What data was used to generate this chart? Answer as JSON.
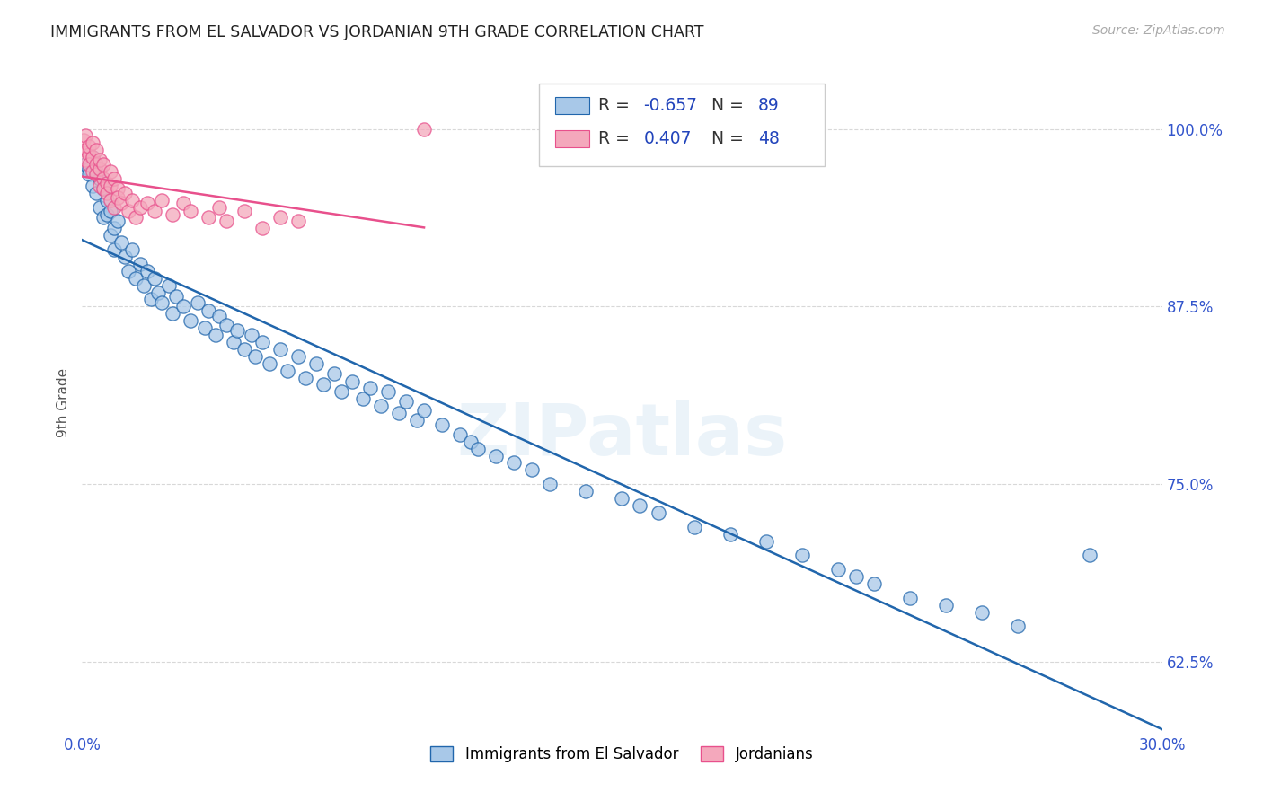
{
  "title": "IMMIGRANTS FROM EL SALVADOR VS JORDANIAN 9TH GRADE CORRELATION CHART",
  "source": "Source: ZipAtlas.com",
  "ylabel": "9th Grade",
  "yticks": [
    0.625,
    0.75,
    0.875,
    1.0
  ],
  "ytick_labels": [
    "62.5%",
    "75.0%",
    "87.5%",
    "100.0%"
  ],
  "xmin": 0.0,
  "xmax": 0.3,
  "ymin": 0.575,
  "ymax": 1.04,
  "blue_R": -0.657,
  "blue_N": 89,
  "pink_R": 0.407,
  "pink_N": 48,
  "blue_color": "#a8c8e8",
  "pink_color": "#f4a8bc",
  "blue_line_color": "#2166ac",
  "pink_line_color": "#e8508c",
  "legend_label_blue": "Immigrants from El Salvador",
  "legend_label_pink": "Jordanians",
  "watermark": "ZIPatlas",
  "background_color": "#ffffff",
  "grid_color": "#d8d8d8",
  "title_color": "#222222",
  "axis_label_color": "#3355cc",
  "blue_scatter_x": [
    0.001,
    0.002,
    0.002,
    0.003,
    0.003,
    0.004,
    0.004,
    0.005,
    0.005,
    0.006,
    0.006,
    0.007,
    0.007,
    0.008,
    0.008,
    0.009,
    0.009,
    0.01,
    0.011,
    0.012,
    0.013,
    0.014,
    0.015,
    0.016,
    0.017,
    0.018,
    0.019,
    0.02,
    0.021,
    0.022,
    0.024,
    0.025,
    0.026,
    0.028,
    0.03,
    0.032,
    0.034,
    0.035,
    0.037,
    0.038,
    0.04,
    0.042,
    0.043,
    0.045,
    0.047,
    0.048,
    0.05,
    0.052,
    0.055,
    0.057,
    0.06,
    0.062,
    0.065,
    0.067,
    0.07,
    0.072,
    0.075,
    0.078,
    0.08,
    0.083,
    0.085,
    0.088,
    0.09,
    0.093,
    0.095,
    0.1,
    0.105,
    0.108,
    0.11,
    0.115,
    0.12,
    0.125,
    0.13,
    0.14,
    0.15,
    0.155,
    0.16,
    0.17,
    0.18,
    0.19,
    0.2,
    0.21,
    0.215,
    0.22,
    0.23,
    0.24,
    0.25,
    0.26,
    0.28
  ],
  "blue_scatter_y": [
    0.975,
    0.972,
    0.968,
    0.98,
    0.96,
    0.97,
    0.955,
    0.945,
    0.965,
    0.958,
    0.938,
    0.95,
    0.94,
    0.925,
    0.942,
    0.93,
    0.915,
    0.935,
    0.92,
    0.91,
    0.9,
    0.915,
    0.895,
    0.905,
    0.89,
    0.9,
    0.88,
    0.895,
    0.885,
    0.878,
    0.89,
    0.87,
    0.882,
    0.875,
    0.865,
    0.878,
    0.86,
    0.872,
    0.855,
    0.868,
    0.862,
    0.85,
    0.858,
    0.845,
    0.855,
    0.84,
    0.85,
    0.835,
    0.845,
    0.83,
    0.84,
    0.825,
    0.835,
    0.82,
    0.828,
    0.815,
    0.822,
    0.81,
    0.818,
    0.805,
    0.815,
    0.8,
    0.808,
    0.795,
    0.802,
    0.792,
    0.785,
    0.78,
    0.775,
    0.77,
    0.765,
    0.76,
    0.75,
    0.745,
    0.74,
    0.735,
    0.73,
    0.72,
    0.715,
    0.71,
    0.7,
    0.69,
    0.685,
    0.68,
    0.67,
    0.665,
    0.66,
    0.65,
    0.7
  ],
  "pink_scatter_x": [
    0.0005,
    0.001,
    0.001,
    0.001,
    0.002,
    0.002,
    0.002,
    0.003,
    0.003,
    0.003,
    0.004,
    0.004,
    0.004,
    0.005,
    0.005,
    0.005,
    0.006,
    0.006,
    0.006,
    0.007,
    0.007,
    0.008,
    0.008,
    0.008,
    0.009,
    0.009,
    0.01,
    0.01,
    0.011,
    0.012,
    0.013,
    0.014,
    0.015,
    0.016,
    0.018,
    0.02,
    0.022,
    0.025,
    0.028,
    0.03,
    0.035,
    0.038,
    0.04,
    0.045,
    0.05,
    0.055,
    0.06,
    0.095
  ],
  "pink_scatter_y": [
    0.992,
    0.985,
    0.978,
    0.995,
    0.982,
    0.988,
    0.975,
    0.98,
    0.97,
    0.99,
    0.975,
    0.968,
    0.985,
    0.972,
    0.96,
    0.978,
    0.965,
    0.958,
    0.975,
    0.962,
    0.955,
    0.97,
    0.96,
    0.95,
    0.965,
    0.945,
    0.958,
    0.952,
    0.948,
    0.955,
    0.942,
    0.95,
    0.938,
    0.945,
    0.948,
    0.942,
    0.95,
    0.94,
    0.948,
    0.942,
    0.938,
    0.945,
    0.935,
    0.942,
    0.93,
    0.938,
    0.935,
    1.0
  ]
}
